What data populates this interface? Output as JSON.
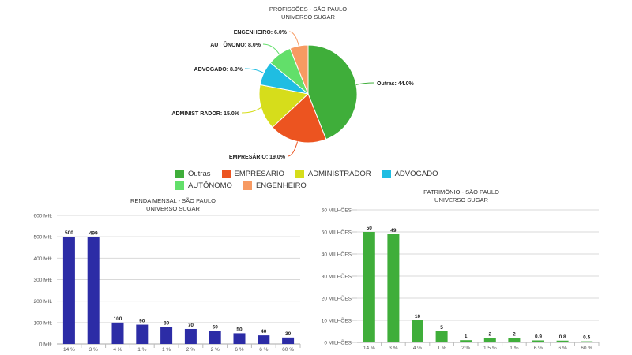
{
  "chart_data": [
    {
      "type": "pie",
      "title": "PROFISSÕES - SÃO PAULO",
      "subtitle": "UNIVERSO SUGAR",
      "slices": [
        {
          "label": "Outras",
          "value": 44.0,
          "display": "Outras: 44.0%",
          "color": "#3fae3a"
        },
        {
          "label": "EMPRESÁRIO",
          "value": 19.0,
          "display": "EMPRESÁRIO: 19.0%",
          "color": "#ec5420"
        },
        {
          "label": "ADMINISTRADOR",
          "value": 15.0,
          "display": "ADMINIST RADOR: 15.0%",
          "color": "#d6dd1b"
        },
        {
          "label": "ADVOGADO",
          "value": 8.0,
          "display": "ADVOGADO: 8.0%",
          "color": "#1fbde2"
        },
        {
          "label": "AUTÔNOMO",
          "value": 8.0,
          "display": "AUT ÔNOMO: 8.0%",
          "color": "#62df6a"
        },
        {
          "label": "ENGENHEIRO",
          "value": 6.0,
          "display": "ENGENHEIRO: 6.0%",
          "color": "#f79a62"
        }
      ],
      "legend": [
        "Outras",
        "EMPRESÁRIO",
        "ADMINISTRADOR",
        "ADVOGADO",
        "AUTÔNOMO",
        "ENGENHEIRO"
      ],
      "legend_position": "bottom"
    },
    {
      "type": "bar",
      "title": "RENDA MENSAL - SÃO PAULO",
      "subtitle": "UNIVERSO SUGAR",
      "categories": [
        "14 %",
        "3 %",
        "4 %",
        "1 %",
        "1 %",
        "2 %",
        "2 %",
        "6 %",
        "6 %",
        "60 %"
      ],
      "values": [
        500,
        499,
        100,
        90,
        80,
        70,
        60,
        50,
        40,
        30
      ],
      "value_labels": [
        "500",
        "499",
        "100",
        "90",
        "80",
        "70",
        "60",
        "50",
        "40",
        "30"
      ],
      "ylim": [
        0,
        600
      ],
      "yticks": [
        0,
        100,
        200,
        300,
        400,
        500,
        600
      ],
      "ytick_labels": [
        "0 MIL",
        "100 MIL",
        "200 MIL",
        "300 MIL",
        "400 MIL",
        "500 MIL",
        "600 MIL"
      ],
      "color": "#2c2ca6",
      "grid": true
    },
    {
      "type": "bar",
      "title": "PATRIMÔNIO - SÃO PAULO",
      "subtitle": "UNIVERSO SUGAR",
      "categories": [
        "14 %",
        "3 %",
        "4 %",
        "1 %",
        "2 %",
        "1.5 %",
        "1 %",
        "6 %",
        "6 %",
        "60 %"
      ],
      "values": [
        50,
        49,
        10,
        5,
        1,
        2,
        2,
        0.9,
        0.8,
        0.5
      ],
      "value_labels": [
        "50",
        "49",
        "10",
        "5",
        "1",
        "2",
        "2",
        "0.9",
        "0.8",
        "0.5"
      ],
      "ylim": [
        0,
        60
      ],
      "yticks": [
        0,
        10,
        20,
        30,
        40,
        50,
        60
      ],
      "ytick_labels": [
        "0 MILHÕES",
        "10 MILHÕES",
        "20 MILHÕES",
        "30 MILHÕES",
        "40 MILHÕES",
        "50 MILHÕES",
        "60 MILHÕES"
      ],
      "color": "#3fae3a",
      "grid": true
    }
  ]
}
